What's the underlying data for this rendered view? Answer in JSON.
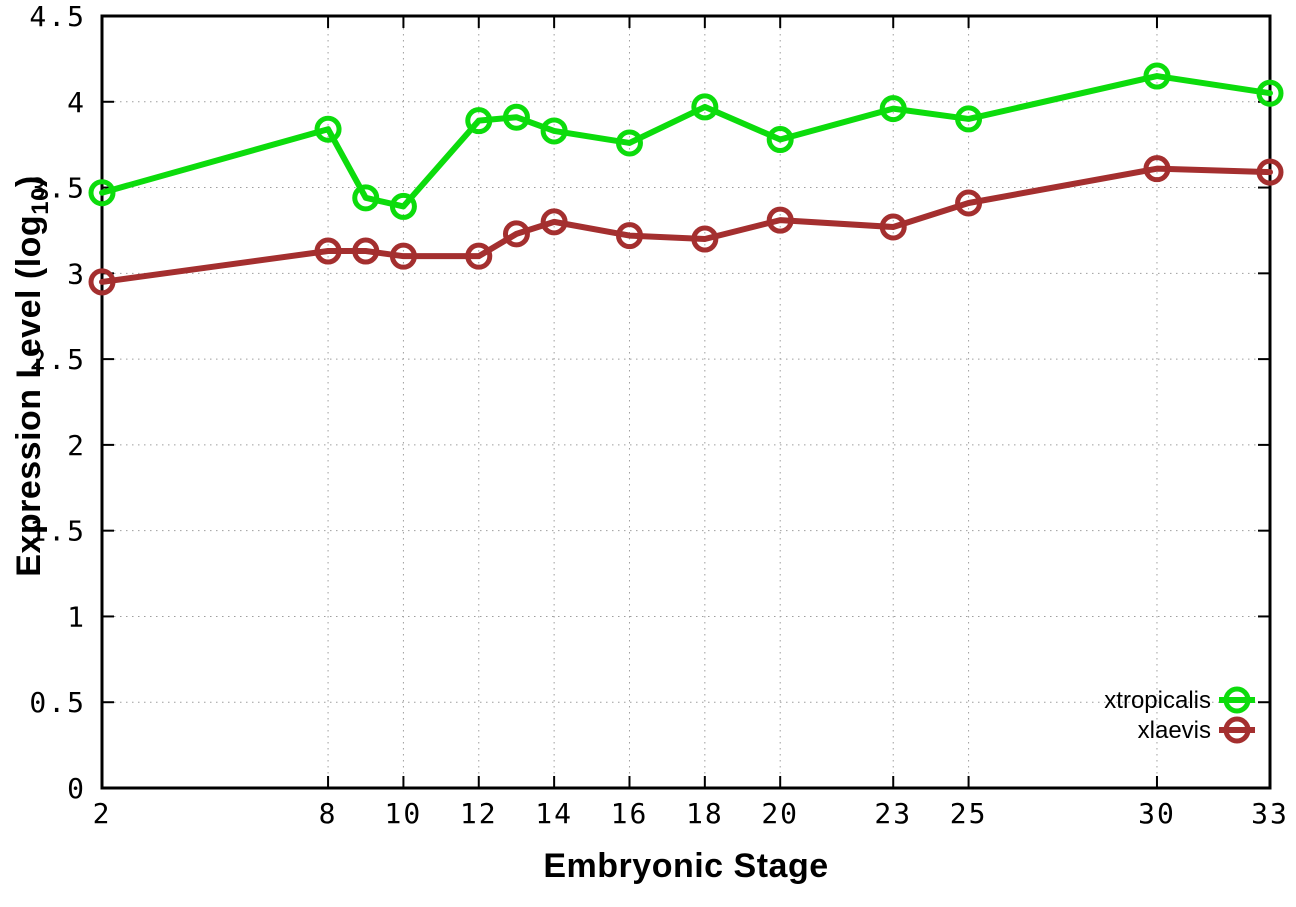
{
  "figure": {
    "background": "#ffffff",
    "axis_color": "#000000",
    "grid_color": "#9e9e9e",
    "text_color": "#000000"
  },
  "chart_data": {
    "type": "line",
    "title": "",
    "xlabel": "Embryonic Stage",
    "ylabel": "Expression Level (log10)",
    "ylabel_parts": {
      "prefix": "Expression Level (log",
      "subscript": "10",
      "suffix": ")"
    },
    "xlim": [
      2,
      33
    ],
    "ylim": [
      0,
      4.5
    ],
    "x_ticks": [
      2,
      8,
      10,
      12,
      14,
      16,
      18,
      20,
      23,
      25,
      30,
      33
    ],
    "y_ticks": [
      0,
      0.5,
      1,
      1.5,
      2,
      2.5,
      3,
      3.5,
      4,
      4.5
    ],
    "grid": true,
    "legend_position": "bottom-right",
    "x": [
      2,
      8,
      9,
      10,
      12,
      13,
      14,
      16,
      18,
      20,
      23,
      25,
      30,
      33
    ],
    "series": [
      {
        "name": "xtropicalis",
        "color": "#0cdc0c",
        "marker": "open-circle",
        "values": [
          3.47,
          3.84,
          3.44,
          3.39,
          3.89,
          3.91,
          3.83,
          3.76,
          3.97,
          3.78,
          3.96,
          3.9,
          4.15,
          4.05
        ]
      },
      {
        "name": "xlaevis",
        "color": "#a42f2f",
        "marker": "open-circle",
        "values": [
          2.95,
          3.13,
          3.13,
          3.1,
          3.1,
          3.23,
          3.3,
          3.22,
          3.2,
          3.31,
          3.27,
          3.41,
          3.61,
          3.59
        ]
      }
    ]
  }
}
